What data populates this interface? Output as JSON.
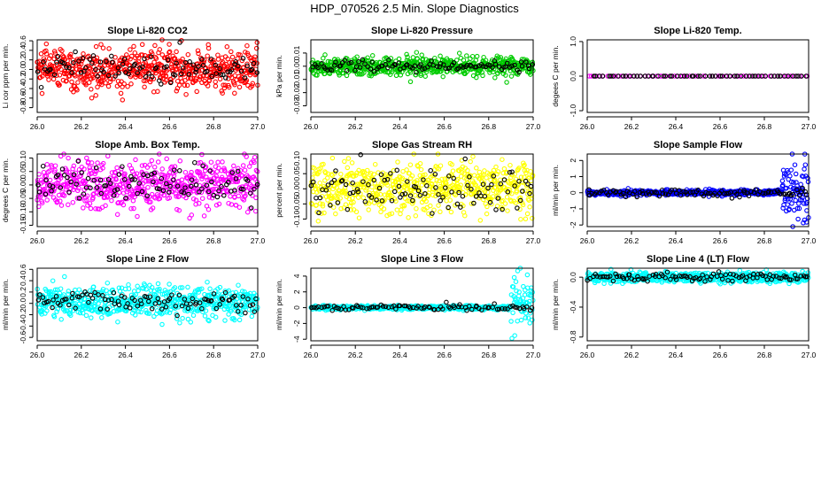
{
  "figure": {
    "title": "HDP_070526  2.5 Min. Slope Diagnostics"
  },
  "chart_data": [
    {
      "type": "scatter",
      "title": "Slope Li-820 CO2",
      "ylabel": "Li cor ppm per min.",
      "xlim": [
        26.0,
        27.0
      ],
      "ylim": [
        -0.9,
        0.62
      ],
      "x_ticks": [
        "26.0",
        "26.2",
        "26.4",
        "26.6",
        "26.8",
        "27.0"
      ],
      "y_ticks": [
        -0.8,
        -0.6,
        -0.4,
        -0.2,
        0.0,
        0.2,
        0.4,
        0.6
      ],
      "y_tick_labels": [
        "-0.8",
        "-0.6",
        "-0.4",
        "-0.2",
        "0.0",
        "0.2",
        "0.4",
        "0.6"
      ],
      "series": [
        {
          "color": "#ff0000",
          "points": 600,
          "x_range": [
            26.0,
            27.0
          ],
          "center": 0.0,
          "spread": 0.22,
          "seed": 11
        },
        {
          "color": "#000000",
          "points": 100,
          "x_range": [
            26.0,
            27.0
          ],
          "center": 0.0,
          "spread": 0.15,
          "seed": 12
        }
      ]
    },
    {
      "type": "scatter",
      "title": "Slope Li-820 Pressure",
      "ylabel": "kPa per min.",
      "xlim": [
        26.0,
        27.0
      ],
      "ylim": [
        -0.035,
        0.02
      ],
      "x_ticks": [
        "26.0",
        "26.2",
        "26.4",
        "26.6",
        "26.8",
        "27.0"
      ],
      "y_ticks": [
        -0.03,
        -0.02,
        -0.01,
        0.0,
        0.01
      ],
      "y_tick_labels": [
        "-0.03",
        "-0.02",
        "-0.01",
        "0.00",
        "0.01"
      ],
      "series": [
        {
          "color": "#00cc00",
          "points": 600,
          "x_range": [
            26.0,
            27.0
          ],
          "center": 0.0,
          "spread": 0.0035,
          "seed": 21
        },
        {
          "color": "#000000",
          "points": 100,
          "x_range": [
            26.0,
            27.0
          ],
          "center": 0.0,
          "spread": 0.002,
          "seed": 22
        }
      ]
    },
    {
      "type": "scatter",
      "title": "Slope Li-820 Temp.",
      "ylabel": "degees C per min.",
      "xlim": [
        26.0,
        27.0
      ],
      "ylim": [
        -1.05,
        1.05
      ],
      "x_ticks": [
        "26.0",
        "26.2",
        "26.4",
        "26.6",
        "26.8",
        "27.0"
      ],
      "y_ticks": [
        -1.0,
        0.0,
        1.0
      ],
      "y_tick_labels": [
        "-1.0",
        "0.0",
        "1.0"
      ],
      "series": [
        {
          "color": "#ff00ff",
          "points": 60,
          "x_range": [
            26.0,
            27.0
          ],
          "center": 0.0,
          "spread": 0.0,
          "seed": 31
        },
        {
          "color": "#000000",
          "points": 60,
          "x_range": [
            26.02,
            27.0
          ],
          "center": 0.0,
          "spread": 0.0,
          "seed": 32
        }
      ]
    },
    {
      "type": "scatter",
      "title": "Slope Amb. Box Temp.",
      "ylabel": "degrees C per min.",
      "xlim": [
        26.0,
        27.0
      ],
      "ylim": [
        -0.155,
        0.115
      ],
      "x_ticks": [
        "26.0",
        "26.2",
        "26.4",
        "26.6",
        "26.8",
        "27.0"
      ],
      "y_ticks": [
        -0.15,
        -0.1,
        -0.05,
        0.0,
        0.05,
        0.1
      ],
      "y_tick_labels": [
        "-0.15",
        "-0.10",
        "-0.05",
        "0.00",
        "0.05",
        "0.10"
      ],
      "series": [
        {
          "color": "#ff00ff",
          "points": 600,
          "x_range": [
            26.0,
            27.0
          ],
          "center": 0.0,
          "spread": 0.045,
          "seed": 41
        },
        {
          "color": "#000000",
          "points": 100,
          "x_range": [
            26.0,
            27.0
          ],
          "center": 0.0,
          "spread": 0.03,
          "seed": 42
        }
      ]
    },
    {
      "type": "scatter",
      "title": "Slope Gas Stream RH",
      "ylabel": "percent per min.",
      "xlim": [
        26.0,
        27.0
      ],
      "ylim": [
        -0.125,
        0.115
      ],
      "x_ticks": [
        "26.0",
        "26.2",
        "26.4",
        "26.6",
        "26.8",
        "27.0"
      ],
      "y_ticks": [
        -0.1,
        -0.05,
        0.0,
        0.05,
        0.1
      ],
      "y_tick_labels": [
        "-0.10",
        "-0.05",
        "0.00",
        "0.05",
        "0.10"
      ],
      "series": [
        {
          "color": "#ffff00",
          "points": 600,
          "x_range": [
            26.0,
            27.0
          ],
          "center": 0.0,
          "spread": 0.042,
          "seed": 51
        },
        {
          "color": "#000000",
          "points": 100,
          "x_range": [
            26.0,
            27.0
          ],
          "center": 0.0,
          "spread": 0.035,
          "seed": 52
        }
      ]
    },
    {
      "type": "scatter",
      "title": "Slope Sample Flow",
      "ylabel": "ml/min per min.",
      "xlim": [
        26.0,
        27.0
      ],
      "ylim": [
        -2.1,
        2.4
      ],
      "x_ticks": [
        "26.0",
        "26.2",
        "26.4",
        "26.6",
        "26.8",
        "27.0"
      ],
      "y_ticks": [
        -2,
        -1,
        0,
        1,
        2
      ],
      "y_tick_labels": [
        "-2",
        "-1",
        "0",
        "1",
        "2"
      ],
      "series": [
        {
          "color": "#0000ff",
          "points": 500,
          "x_range": [
            26.0,
            26.88
          ],
          "center": 0.0,
          "spread": 0.08,
          "seed": 61
        },
        {
          "color": "#0000ff",
          "points": 80,
          "x_range": [
            26.88,
            27.0
          ],
          "center": 0.0,
          "spread": 0.9,
          "seed": 63
        },
        {
          "color": "#000000",
          "points": 100,
          "x_range": [
            26.0,
            27.0
          ],
          "center": 0.0,
          "spread": 0.12,
          "seed": 62
        }
      ]
    },
    {
      "type": "scatter",
      "title": "Slope Line 2 Flow",
      "ylabel": "ml/min per min.",
      "xlim": [
        26.0,
        27.0
      ],
      "ylim": [
        -0.66,
        0.62
      ],
      "x_ticks": [
        "26.0",
        "26.2",
        "26.4",
        "26.6",
        "26.8",
        "27.0"
      ],
      "y_ticks": [
        -0.6,
        -0.4,
        -0.2,
        0.0,
        0.2,
        0.4,
        0.6
      ],
      "y_tick_labels": [
        "-0.6",
        "-0.4",
        "-0.2",
        "0.0",
        "0.2",
        "0.4",
        "0.6"
      ],
      "series": [
        {
          "color": "#00ffff",
          "points": 600,
          "x_range": [
            26.0,
            27.0
          ],
          "center": 0.02,
          "spread": 0.14,
          "seed": 71
        },
        {
          "color": "#000000",
          "points": 100,
          "x_range": [
            26.0,
            27.0
          ],
          "center": 0.03,
          "spread": 0.09,
          "seed": 72
        }
      ]
    },
    {
      "type": "scatter",
      "title": "Slope Line 3 Flow",
      "ylabel": "ml/min per min.",
      "xlim": [
        26.0,
        27.0
      ],
      "ylim": [
        -4.2,
        5.0
      ],
      "x_ticks": [
        "26.0",
        "26.2",
        "26.4",
        "26.6",
        "26.8",
        "27.0"
      ],
      "y_ticks": [
        -4,
        -2,
        0,
        2,
        4
      ],
      "y_tick_labels": [
        "-4",
        "-2",
        "0",
        "2",
        "4"
      ],
      "series": [
        {
          "color": "#00ffff",
          "points": 550,
          "x_range": [
            26.0,
            26.9
          ],
          "center": 0.0,
          "spread": 0.12,
          "seed": 81
        },
        {
          "color": "#00ffff",
          "points": 60,
          "x_range": [
            26.9,
            27.0
          ],
          "center": 0.5,
          "spread": 1.6,
          "seed": 83
        },
        {
          "color": "#000000",
          "points": 90,
          "x_range": [
            26.0,
            27.0
          ],
          "center": 0.05,
          "spread": 0.2,
          "seed": 82
        }
      ]
    },
    {
      "type": "scatter",
      "title": "Slope Line 4 (LT) Flow",
      "ylabel": "ml/min per min.",
      "xlim": [
        26.0,
        27.0
      ],
      "ylim": [
        -0.85,
        0.12
      ],
      "x_ticks": [
        "26.0",
        "26.2",
        "26.4",
        "26.6",
        "26.8",
        "27.0"
      ],
      "y_ticks": [
        -0.8,
        -0.4,
        0.0
      ],
      "y_tick_labels": [
        "-0.8",
        "-0.4",
        "0.0"
      ],
      "series": [
        {
          "color": "#00ffff",
          "points": 600,
          "x_range": [
            26.0,
            27.0
          ],
          "center": 0.0,
          "spread": 0.035,
          "seed": 91
        },
        {
          "color": "#000000",
          "points": 100,
          "x_range": [
            26.0,
            27.0
          ],
          "center": 0.0,
          "spread": 0.025,
          "seed": 92
        }
      ]
    }
  ]
}
